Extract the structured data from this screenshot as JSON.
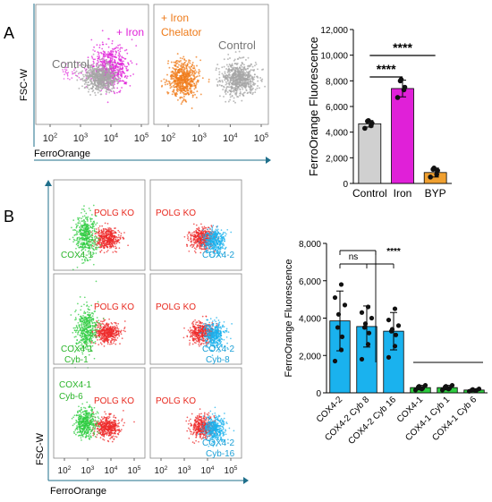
{
  "panel_labels": [
    "A",
    "B"
  ],
  "colors": {
    "gray": "#a6a6a6",
    "magenta": "#e020d8",
    "orange": "#f07d1e",
    "green": "#2ecc40",
    "red": "#ee2a2a",
    "blue": "#1ab2ee",
    "axis_blue": "#1f6f8b",
    "text_red": "#e8281e",
    "text_blue": "#1a9fd6",
    "text_green": "#2bb52b",
    "text_magenta": "#e020d8",
    "text_orange": "#ee7a18"
  },
  "panel_a": {
    "y_axis_label": "FSC-W",
    "x_axis_label": "FerroOrange",
    "ticks": [
      "10",
      "10",
      "10",
      "10"
    ],
    "tick_exps": [
      "2",
      "3",
      "4",
      "5"
    ],
    "plot1": {
      "label_control": "Control",
      "label_iron": "+ Iron"
    },
    "plot2": {
      "label_chelator_1": "+ Iron",
      "label_chelator_2": "Chelator",
      "label_control": "Control"
    }
  },
  "panel_b": {
    "y_axis_label": "FSC-W",
    "x_axis_label": "FerroOrange",
    "ticks": [
      "10",
      "10",
      "10",
      "10"
    ],
    "tick_exps": [
      "2",
      "3",
      "4",
      "5"
    ],
    "plots": [
      {
        "label_ko": "POLG KO",
        "label_1": "COX4-1",
        "label_2": ""
      },
      {
        "label_ko": "POLG KO",
        "label_1": "COX4-2",
        "label_2": ""
      },
      {
        "label_ko": "POLG KO",
        "label_1": "COX4-1",
        "label_2": "Cyb-1"
      },
      {
        "label_ko": "POLG KO",
        "label_1": "COX4-2",
        "label_2": "Cyb-8"
      },
      {
        "label_ko": "POLG KO",
        "label_1": "COX4-1",
        "label_2": "Cyb-6"
      },
      {
        "label_ko": "POLG KO",
        "label_1": "COX4-2",
        "label_2": "Cyb-16"
      }
    ]
  },
  "chart_data": [
    {
      "type": "bar",
      "categories": [
        "Control",
        "Iron",
        "BYP"
      ],
      "values": [
        4650,
        7400,
        850
      ],
      "errors": [
        250,
        650,
        350
      ],
      "points": [
        [
          4300,
          4500,
          4700,
          4850,
          4900
        ],
        [
          6700,
          7300,
          7500,
          8000,
          8100
        ],
        [
          500,
          700,
          1000,
          1100,
          1200
        ]
      ],
      "colors": [
        "#d0d0d0",
        "#e020d8",
        "#f0a030"
      ],
      "ylabel": "FerroOrange Fluorescence",
      "ylim": [
        0,
        12000
      ],
      "yticks": [
        "0",
        "2,000",
        "4,000",
        "6,000",
        "8,000",
        "10,000",
        "12,000"
      ],
      "significance": [
        "****",
        "****"
      ]
    },
    {
      "type": "bar",
      "categories": [
        "COX4-2",
        "COX4-2 Cyb 8",
        "COX4-2 Cyb 16",
        "COX4-1",
        "COX4-1 Cyb 1",
        "COX4-1 Cyb 6"
      ],
      "values": [
        3850,
        3550,
        3300,
        280,
        280,
        150
      ],
      "errors": [
        1600,
        1100,
        1000,
        120,
        120,
        60
      ],
      "points": [
        [
          1700,
          2300,
          3000,
          3500,
          4200,
          4700,
          5100,
          5800
        ],
        [
          1800,
          2600,
          3200,
          3500,
          3700,
          4000,
          4300,
          4600
        ],
        [
          1900,
          2500,
          3100,
          3300,
          3400,
          3600,
          3900,
          4500
        ],
        [
          150,
          200,
          250,
          300,
          350,
          400
        ],
        [
          150,
          200,
          250,
          300,
          350,
          400
        ],
        [
          80,
          100,
          130,
          150,
          180,
          210
        ]
      ],
      "colors": [
        "#1ab2ee",
        "#1ab2ee",
        "#1ab2ee",
        "#2ecc40",
        "#2ecc40",
        "#2ecc40"
      ],
      "ylabel": "FerroOrange Fluorescence",
      "ylim": [
        0,
        8000
      ],
      "yticks": [
        "0",
        "2,000",
        "4,000",
        "6,000",
        "8,000"
      ],
      "significance": [
        "ns",
        "****"
      ]
    }
  ]
}
